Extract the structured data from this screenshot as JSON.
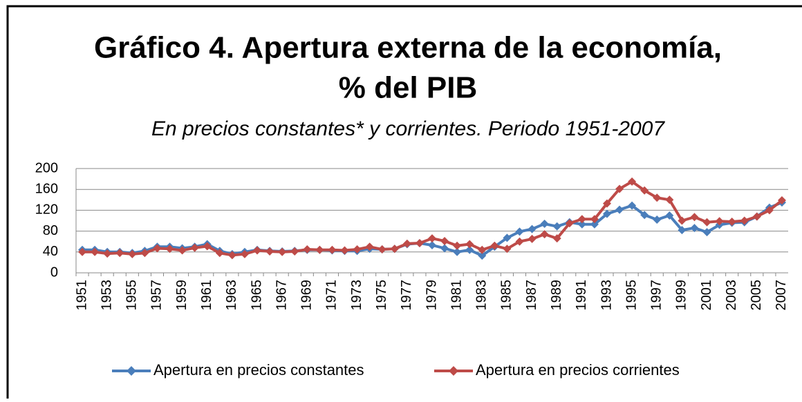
{
  "chart_data": {
    "type": "line",
    "title": [
      "Gráfico 4. Apertura externa de la economía,",
      "% del PIB"
    ],
    "subtitle": "En precios constantes* y corrientes. Periodo 1951-2007",
    "categories": [
      "1951",
      null,
      "1953",
      null,
      "1955",
      null,
      "1957",
      null,
      "1959",
      null,
      "1961",
      null,
      "1963",
      null,
      "1965",
      null,
      "1967",
      null,
      "1969",
      null,
      "1971",
      null,
      "1973",
      null,
      "1975",
      null,
      "1977",
      null,
      "1979",
      null,
      "1981",
      null,
      "1983",
      null,
      "1985",
      null,
      "1987",
      null,
      "1989",
      null,
      "1991",
      null,
      "1993",
      null,
      "1995",
      null,
      "1997",
      null,
      "1999",
      null,
      "2001",
      null,
      "2003",
      null,
      "2005",
      null,
      "2007"
    ],
    "series": [
      {
        "name": "Apertura en precios constantes",
        "color": "#4a7ebb",
        "values": [
          44,
          44,
          40,
          40,
          38,
          42,
          50,
          50,
          47,
          50,
          55,
          42,
          36,
          40,
          44,
          42,
          41,
          42,
          44,
          44,
          43,
          42,
          42,
          46,
          45,
          46,
          55,
          57,
          53,
          47,
          40,
          44,
          33,
          50,
          67,
          79,
          84,
          94,
          89,
          97,
          93,
          93,
          113,
          121,
          129,
          111,
          102,
          110,
          82,
          86,
          78,
          92,
          96,
          97,
          108,
          125,
          135
        ]
      },
      {
        "name": "Apertura en precios corrientes",
        "color": "#be4b48",
        "values": [
          40,
          40,
          37,
          38,
          36,
          38,
          47,
          46,
          43,
          48,
          51,
          38,
          34,
          36,
          43,
          41,
          40,
          41,
          45,
          44,
          44,
          43,
          45,
          50,
          45,
          46,
          56,
          57,
          66,
          61,
          52,
          55,
          44,
          52,
          46,
          60,
          65,
          74,
          66,
          95,
          103,
          103,
          133,
          161,
          175,
          158,
          144,
          140,
          100,
          107,
          97,
          99,
          98,
          100,
          108,
          120,
          139
        ]
      }
    ],
    "ylim": [
      0,
      200
    ],
    "yticks": [
      0,
      40,
      80,
      120,
      160,
      200
    ],
    "grid": true,
    "legend": "bottom"
  }
}
